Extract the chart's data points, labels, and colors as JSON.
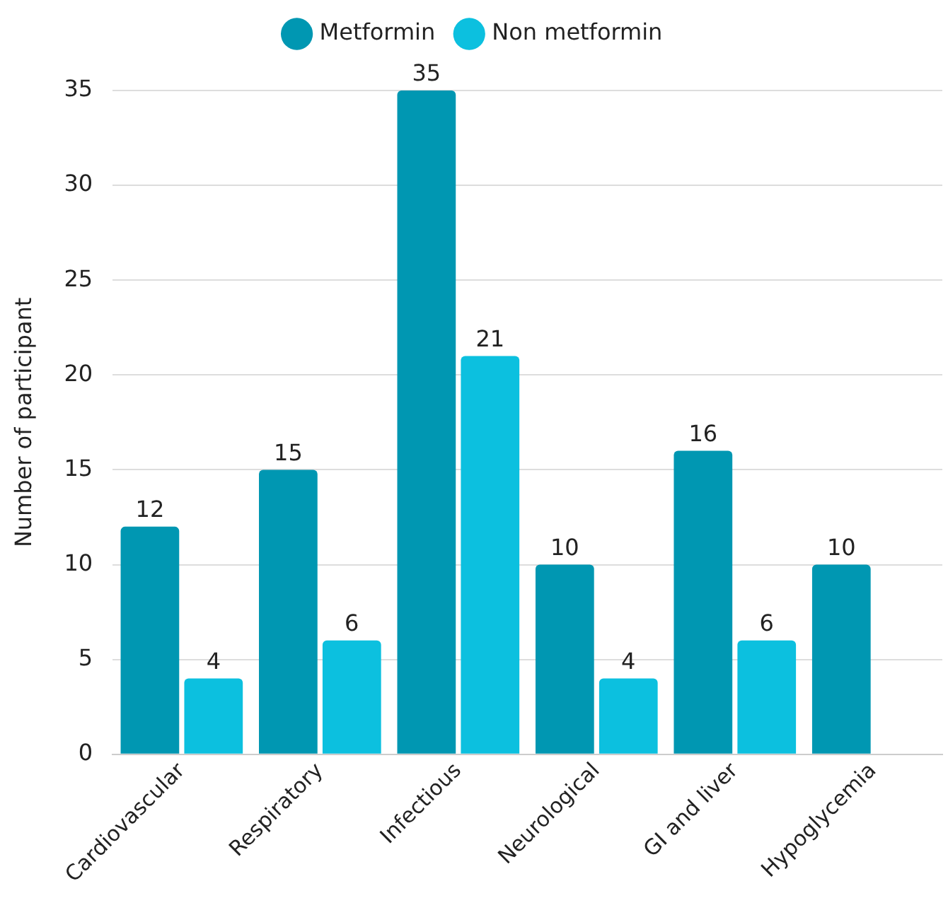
{
  "chart_data": {
    "type": "bar",
    "ylabel": "Number of participant",
    "categories": [
      "Cardiovascular",
      "Respiratory",
      "Infectious",
      "Neurological",
      "GI and liver",
      "Hypoglycemia"
    ],
    "series": [
      {
        "name": "Metformin",
        "color": "#0097b2",
        "values": [
          12,
          15,
          35,
          10,
          16,
          10
        ]
      },
      {
        "name": "Non metformin",
        "color": "#0cc0df",
        "values": [
          4,
          6,
          21,
          4,
          6,
          null
        ]
      }
    ],
    "ylim": [
      0,
      35
    ],
    "yticks": [
      0,
      5,
      10,
      15,
      20,
      25,
      30,
      35
    ],
    "grid": "y",
    "legend": "top",
    "data_labels": true
  }
}
